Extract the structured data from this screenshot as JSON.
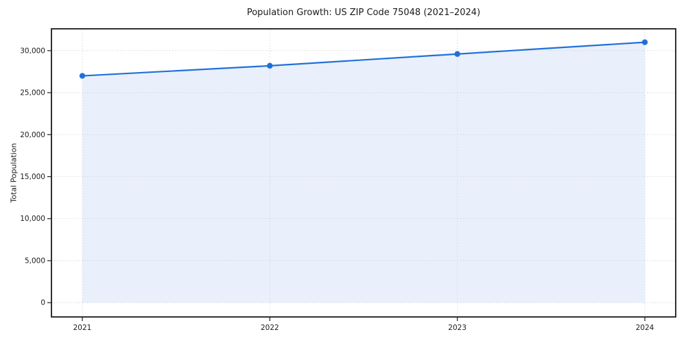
{
  "figure": {
    "title": "Population Growth: US ZIP Code 75048 (2021–2024)",
    "ylabel": "Total Population"
  },
  "chart_data": {
    "type": "line",
    "title": "Population Growth: US ZIP Code 75048 (2021–2024)",
    "xlabel": "",
    "ylabel": "Total Population",
    "x": [
      2021,
      2022,
      2023,
      2024
    ],
    "series": [
      {
        "name": "Total Population",
        "values": [
          27000,
          28200,
          29600,
          31000
        ]
      }
    ],
    "yticks": [
      0,
      5000,
      10000,
      15000,
      20000,
      25000,
      30000
    ],
    "ylim": [
      -1700,
      32600
    ],
    "grid": true,
    "grid_style": "dotted",
    "legend": "none",
    "line_color": "#2070d9",
    "fill_color": "#e9f0fc",
    "marker": "circle",
    "area_fill": true,
    "axis_color": "#1a1a1a",
    "grid_color": "#cfcfcf"
  }
}
